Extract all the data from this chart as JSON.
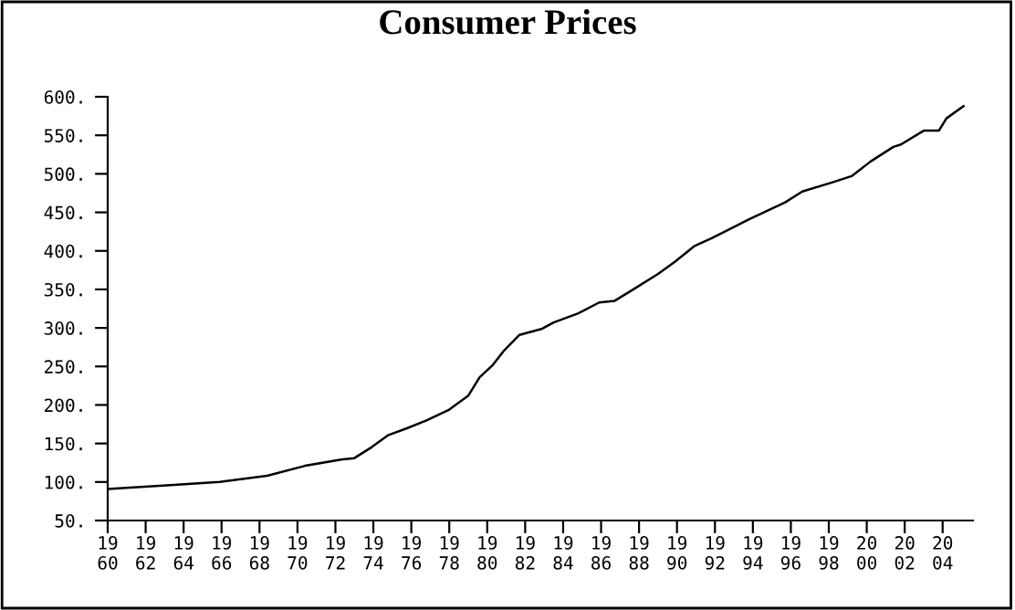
{
  "chart_data": {
    "type": "line",
    "title": "Consumer Prices",
    "x": [
      1960.0,
      1963.3,
      1965.9,
      1968.4,
      1970.4,
      1972.3,
      1973.0,
      1973.9,
      1974.8,
      1975.8,
      1976.8,
      1978.0,
      1979.0,
      1979.6,
      1980.3,
      1980.9,
      1981.7,
      1982.9,
      1983.5,
      1984.8,
      1985.9,
      1986.7,
      1987.7,
      1989.0,
      1989.9,
      1990.9,
      1991.8,
      1993.8,
      1995.7,
      1996.6,
      1998.2,
      1999.2,
      2000.2,
      2001.4,
      2001.8,
      2003.0,
      2003.8,
      2004.2,
      2005.1
    ],
    "series": [
      {
        "color": "#000000",
        "values": [
          91,
          96,
          100,
          108,
          121,
          129,
          131,
          145,
          161,
          170,
          180,
          194,
          212,
          236,
          252,
          271,
          291,
          299,
          307,
          319,
          333,
          335,
          350,
          370,
          386,
          406,
          416,
          441,
          463,
          477,
          489,
          497,
          516,
          535,
          538,
          556,
          556,
          572,
          588
        ]
      }
    ],
    "xlim": [
      1960,
      2005.6
    ],
    "xticks": [
      1960,
      1962,
      1964,
      1966,
      1968,
      1970,
      1972,
      1974,
      1976,
      1978,
      1980,
      1982,
      1984,
      1986,
      1988,
      1990,
      1992,
      1994,
      1996,
      1998,
      2000,
      2002,
      2004
    ],
    "ylim": [
      50,
      600
    ],
    "yticks": [
      {
        "value": 50,
        "label": "50."
      },
      {
        "value": 100,
        "label": "100."
      },
      {
        "value": 150,
        "label": "150."
      },
      {
        "value": 200,
        "label": "200."
      },
      {
        "value": 250,
        "label": "250."
      },
      {
        "value": 300,
        "label": "300."
      },
      {
        "value": 350,
        "label": "350."
      },
      {
        "value": 400,
        "label": "400."
      },
      {
        "value": 450,
        "label": "450."
      },
      {
        "value": 500,
        "label": "500."
      },
      {
        "value": 550,
        "label": "550."
      },
      {
        "value": 600,
        "label": "600."
      }
    ],
    "grid": false
  }
}
